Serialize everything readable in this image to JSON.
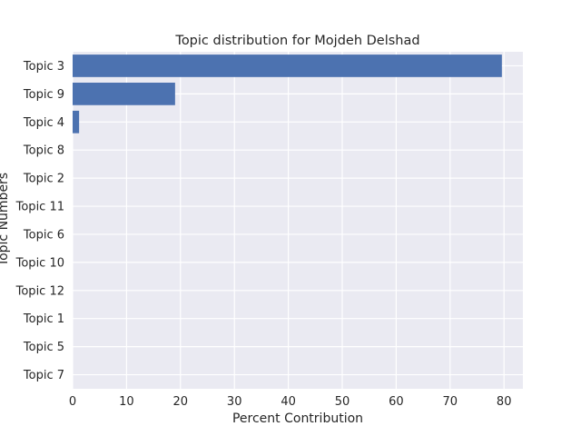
{
  "chart_data": {
    "type": "bar",
    "orientation": "horizontal",
    "title": "Topic distribution for Mojdeh Delshad",
    "xlabel": "Percent Contribution",
    "ylabel": "Topic Numbers",
    "categories": [
      "Topic 3",
      "Topic 9",
      "Topic 4",
      "Topic 8",
      "Topic 2",
      "Topic 11",
      "Topic 6",
      "Topic 10",
      "Topic 12",
      "Topic 1",
      "Topic 5",
      "Topic 7"
    ],
    "values": [
      79.6,
      19.0,
      1.2,
      0,
      0,
      0,
      0,
      0,
      0,
      0,
      0,
      0
    ],
    "xlim": [
      0,
      83.5
    ],
    "xticks": [
      0,
      10,
      20,
      30,
      40,
      50,
      60,
      70,
      80
    ],
    "grid": true,
    "bar_color": "#4c72b0",
    "background_color": "#eaeaf2",
    "grid_color": "#ffffff"
  }
}
